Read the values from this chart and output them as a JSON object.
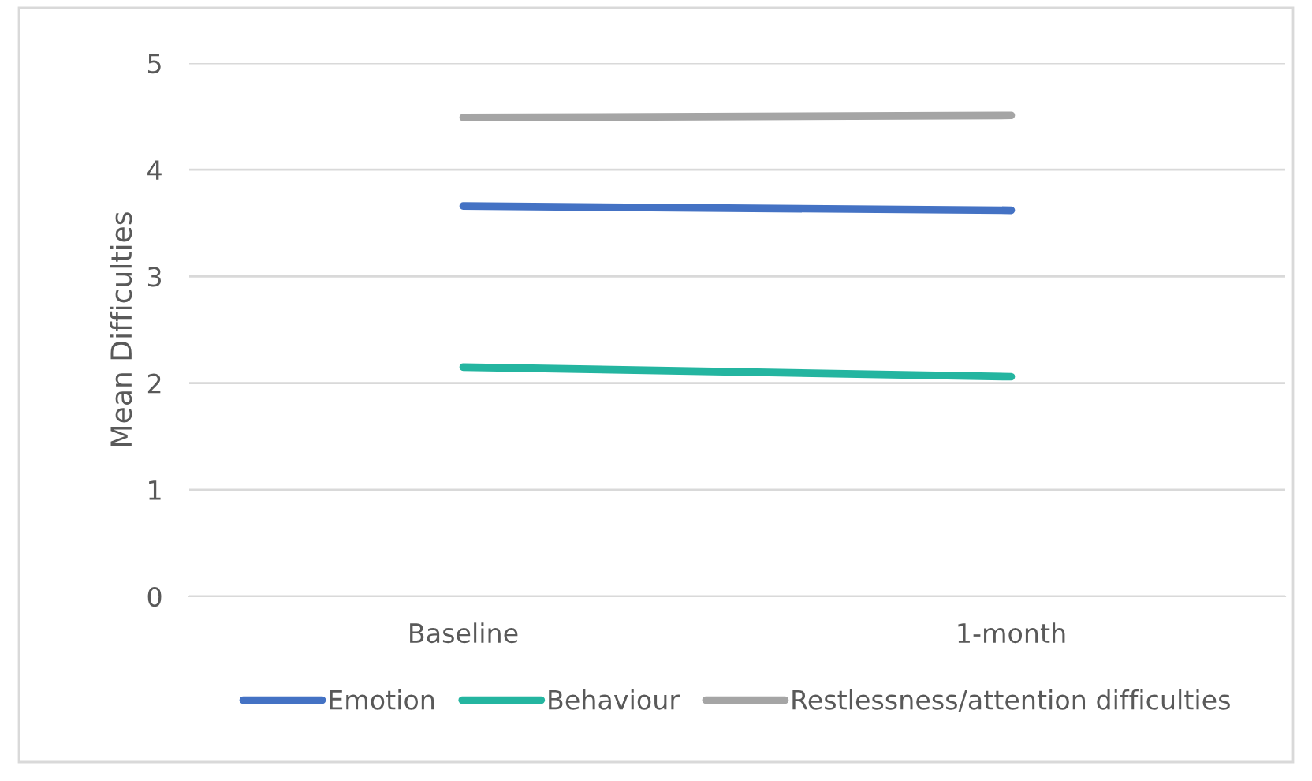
{
  "chart_data": {
    "type": "line",
    "ylabel": "Mean Difficulties",
    "categories": [
      "Baseline",
      "1-month"
    ],
    "series": [
      {
        "name": "Emotion",
        "color": "#4472c4",
        "values": [
          3.66,
          3.62
        ]
      },
      {
        "name": "Behaviour",
        "color": "#24b5a0",
        "values": [
          2.15,
          2.06
        ]
      },
      {
        "name": "Restlessness/attention difficulties",
        "color": "#a5a5a5",
        "values": [
          4.49,
          4.51
        ]
      }
    ],
    "ylim": [
      0,
      5
    ],
    "yticks": [
      0,
      1,
      2,
      3,
      4,
      5
    ],
    "grid": "y",
    "legend": "bottom",
    "marker": "none",
    "line_style": "solid"
  }
}
